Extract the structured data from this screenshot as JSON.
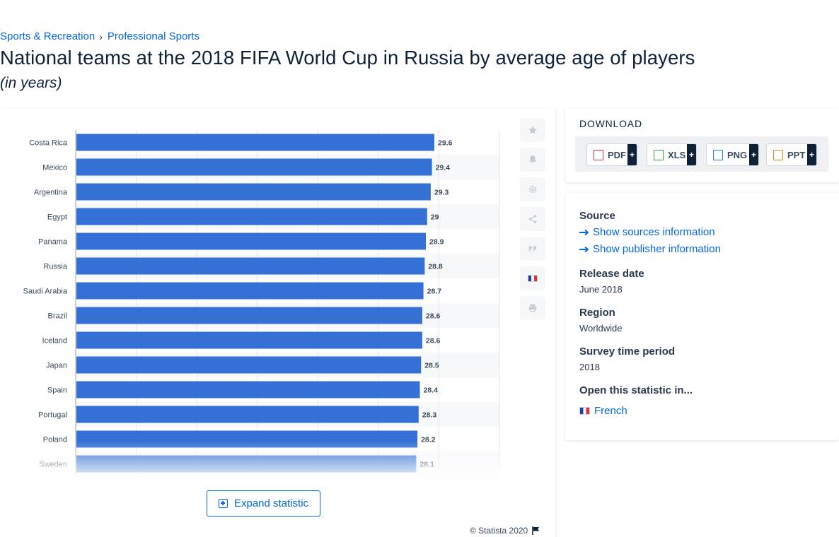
{
  "breadcrumb": {
    "items": [
      "Sports & Recreation",
      "Professional Sports"
    ],
    "separator": "›"
  },
  "title": "National teams at the 2018 FIFA World Cup in Russia by average age of players",
  "subtitle": "(in years)",
  "chart_data": {
    "type": "bar",
    "orientation": "horizontal",
    "categories": [
      "Costa Rica",
      "Mexico",
      "Argentina",
      "Egypt",
      "Panama",
      "Russia",
      "Saudi Arabia",
      "Brazil",
      "Iceland",
      "Japan",
      "Spain",
      "Portugal",
      "Poland",
      "Sweden"
    ],
    "values": [
      29.6,
      29.4,
      29.3,
      29,
      28.9,
      28.8,
      28.7,
      28.6,
      28.6,
      28.5,
      28.4,
      28.3,
      28.2,
      28.1
    ],
    "value_labels": [
      "29.6",
      "29.4",
      "29.3",
      "29",
      "28.9",
      "28.8",
      "28.7",
      "28.6",
      "28.6",
      "28.5",
      "28.4",
      "28.3",
      "28.2",
      "28.1"
    ],
    "bar_color": "#3570d4",
    "grid": true
  },
  "toolbar": {
    "icons": [
      "star-icon",
      "bell-icon",
      "gear-icon",
      "share-icon",
      "quote-icon",
      "french-flag-icon",
      "print-icon"
    ]
  },
  "expand_label": "Expand statistic",
  "copyright": "© Statista 2020",
  "download": {
    "title": "DOWNLOAD",
    "buttons": [
      {
        "label": "PDF",
        "plus": "+",
        "icon": "pdf-icon",
        "color": "#e0313b"
      },
      {
        "label": "XLS",
        "plus": "+",
        "icon": "xls-icon",
        "color": "#3c9b46"
      },
      {
        "label": "PNG",
        "plus": "+",
        "icon": "png-icon",
        "color": "#2f7fd6"
      },
      {
        "label": "PPT",
        "plus": "+",
        "icon": "ppt-icon",
        "color": "#e4862a"
      }
    ]
  },
  "meta": {
    "source_label": "Source",
    "show_sources": "Show sources information",
    "show_publisher": "Show publisher information",
    "release_label": "Release date",
    "release_value": "June 2018",
    "region_label": "Region",
    "region_value": "Worldwide",
    "period_label": "Survey time period",
    "period_value": "2018",
    "open_label": "Open this statistic in...",
    "open_language": "French"
  },
  "colors": {
    "accent": "#0666e5",
    "text": "#0f2137",
    "bar": "#3570d4"
  }
}
